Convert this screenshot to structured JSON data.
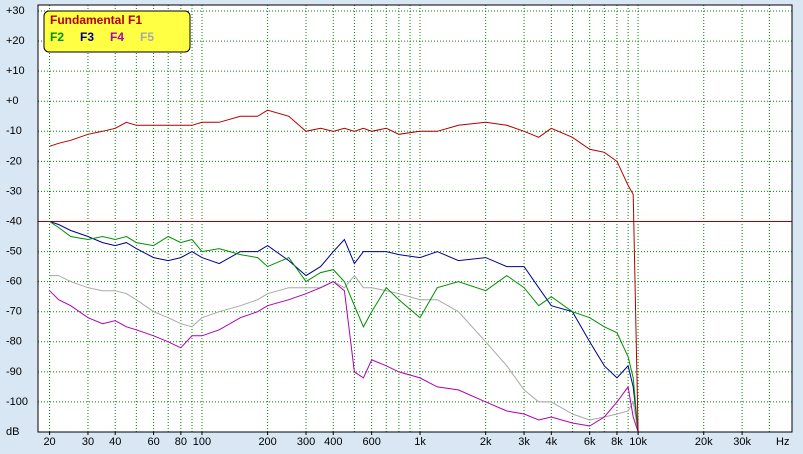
{
  "chart_data": {
    "type": "line",
    "x_label": "Hz",
    "y_label": "dB",
    "x": [
      20,
      22,
      25,
      30,
      35,
      40,
      45,
      50,
      60,
      70,
      80,
      90,
      100,
      120,
      150,
      180,
      200,
      250,
      300,
      350,
      400,
      450,
      500,
      550,
      600,
      700,
      800,
      1000,
      1200,
      1500,
      2000,
      2500,
      3000,
      3500,
      4000,
      5000,
      6000,
      7000,
      8000,
      9000,
      9500,
      10000
    ],
    "series": [
      {
        "name": "Fundamental F1",
        "color": "#b00000",
        "values": [
          -15,
          -14,
          -13,
          -11,
          -10,
          -9,
          -7,
          -8,
          -8,
          -8,
          -8,
          -8,
          -7,
          -7,
          -5,
          -5,
          -3,
          -5,
          -10,
          -9,
          -10,
          -9,
          -10,
          -9,
          -10,
          -9,
          -11,
          -10,
          -10,
          -8,
          -7,
          -8,
          -10,
          -12,
          -9,
          -12,
          -16,
          -17,
          -20,
          -28,
          -31,
          -110
        ]
      },
      {
        "name": "F2",
        "color": "#009000",
        "values": [
          -40,
          -42,
          -45,
          -46,
          -45,
          -46,
          -45,
          -47,
          -48,
          -45,
          -47,
          -46,
          -50,
          -49,
          -51,
          -52,
          -55,
          -52,
          -60,
          -57,
          -56,
          -60,
          -68,
          -75,
          -70,
          -62,
          -66,
          -72,
          -62,
          -60,
          -63,
          -58,
          -62,
          -68,
          -65,
          -70,
          -72,
          -75,
          -77,
          -85,
          -92,
          -110
        ]
      },
      {
        "name": "F3",
        "color": "#000090",
        "values": [
          -40,
          -41,
          -43,
          -45,
          -47,
          -48,
          -47,
          -49,
          -52,
          -53,
          -52,
          -50,
          -52,
          -54,
          -50,
          -50,
          -48,
          -53,
          -58,
          -55,
          -50,
          -46,
          -54,
          -50,
          -50,
          -50,
          -51,
          -52,
          -50,
          -53,
          -52,
          -55,
          -55,
          -62,
          -68,
          -70,
          -80,
          -88,
          -92,
          -88,
          -95,
          -110
        ]
      },
      {
        "name": "F4",
        "color": "#b000b0",
        "values": [
          -63,
          -66,
          -68,
          -72,
          -74,
          -73,
          -75,
          -76,
          -78,
          -80,
          -82,
          -78,
          -78,
          -76,
          -72,
          -70,
          -68,
          -66,
          -64,
          -62,
          -60,
          -63,
          -90,
          -92,
          -86,
          -88,
          -90,
          -92,
          -95,
          -96,
          -100,
          -103,
          -104,
          -106,
          -105,
          -107,
          -108,
          -105,
          -100,
          -95,
          -105,
          -110
        ]
      },
      {
        "name": "F5",
        "color": "#a8a8a8",
        "values": [
          -58,
          -58,
          -60,
          -62,
          -63,
          -63,
          -64,
          -66,
          -70,
          -72,
          -74,
          -75,
          -72,
          -70,
          -68,
          -66,
          -64,
          -62,
          -62,
          -62,
          -60,
          -62,
          -58,
          -62,
          -62,
          -63,
          -64,
          -66,
          -66,
          -70,
          -80,
          -88,
          -96,
          -100,
          -100,
          -104,
          -106,
          -105,
          -104,
          -103,
          -100,
          -110
        ]
      }
    ],
    "hline": -40,
    "log_x": true,
    "xlim": [
      17.7,
      50800
    ],
    "ylim": [
      -110,
      32
    ],
    "xticks": [
      20,
      30,
      40,
      60,
      80,
      100,
      200,
      300,
      400,
      600,
      {
        "value": 1000,
        "label": "1k"
      },
      {
        "value": 2000,
        "label": "2k"
      },
      {
        "value": 3000,
        "label": "3k"
      },
      {
        "value": 4000,
        "label": "4k"
      },
      {
        "value": 6000,
        "label": "6k"
      },
      {
        "value": 8000,
        "label": "8k"
      },
      {
        "value": 10000,
        "label": "10k"
      },
      {
        "value": 20000,
        "label": "20k"
      },
      {
        "value": 30000,
        "label": "30k"
      }
    ],
    "xgrid": [
      20,
      30,
      40,
      50,
      60,
      70,
      80,
      90,
      100,
      200,
      300,
      400,
      500,
      600,
      700,
      800,
      900,
      1000,
      2000,
      3000,
      4000,
      5000,
      6000,
      7000,
      8000,
      9000,
      10000,
      20000,
      30000,
      40000
    ],
    "yticks": [
      {
        "value": 30,
        "label": "+30"
      },
      {
        "value": 20,
        "label": "+20"
      },
      {
        "value": 10,
        "label": "+10"
      },
      {
        "value": 0,
        "label": "+0"
      },
      -10,
      -20,
      -30,
      -40,
      -50,
      -60,
      -70,
      -80,
      -90,
      -100
    ],
    "grid": true,
    "legend": "top-left"
  }
}
